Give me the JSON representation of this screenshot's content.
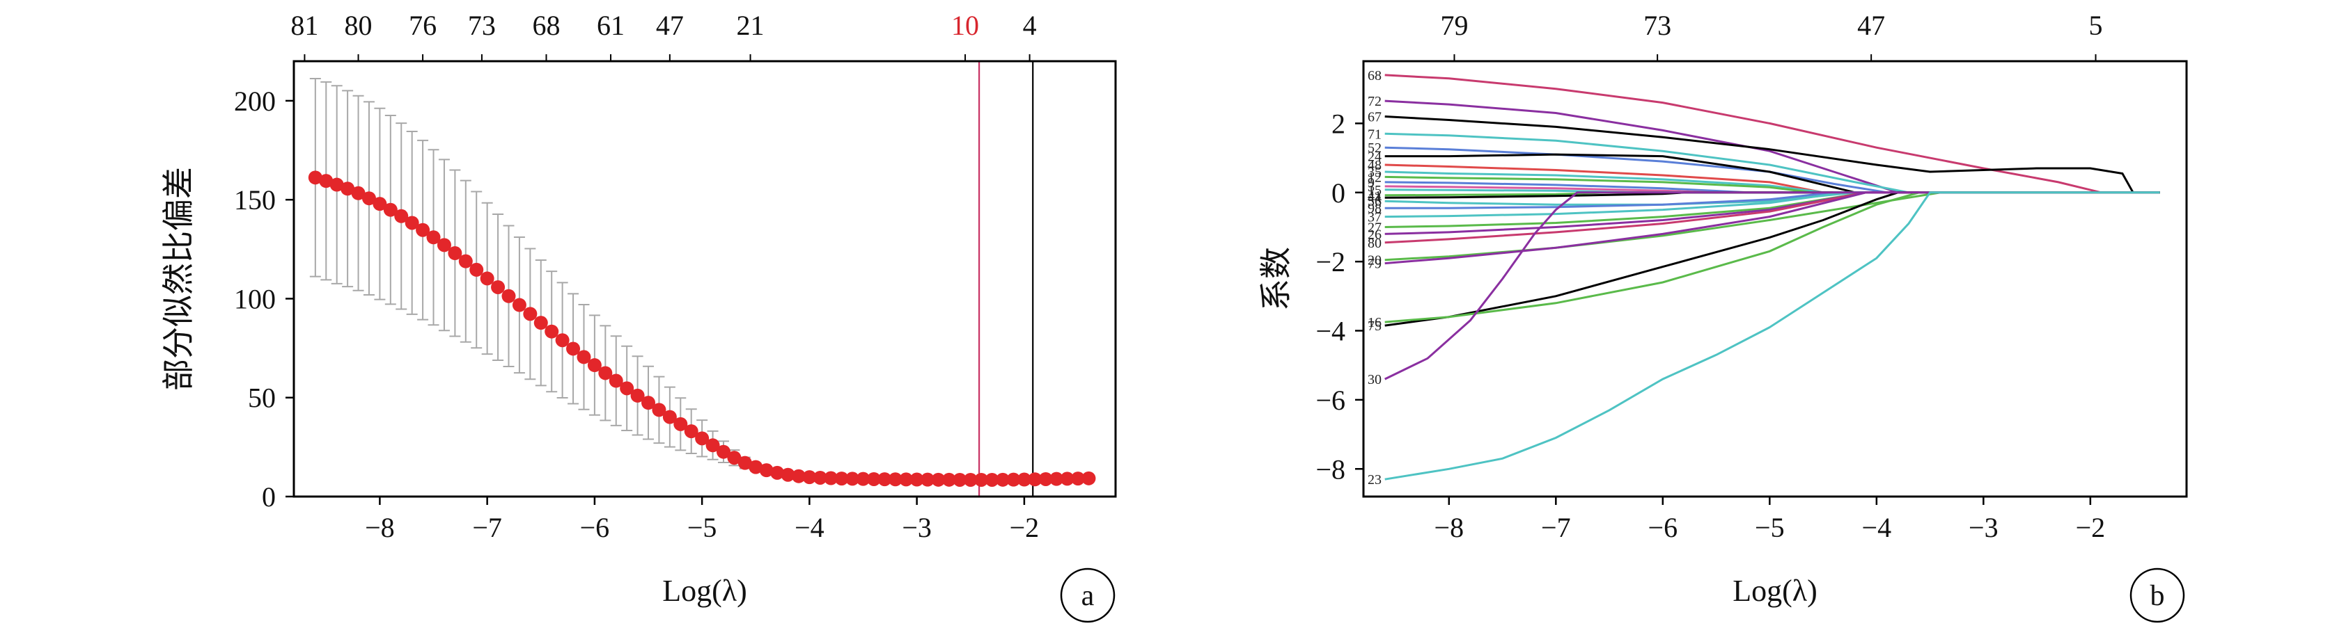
{
  "chart_data": [
    {
      "id": "a",
      "type": "scatter",
      "panel_letter": "a",
      "xlabel": "Log(λ)",
      "ylabel": "部分似然比偏差",
      "xlim": [
        -8.8,
        -1.15
      ],
      "ylim": [
        0,
        220
      ],
      "x_ticks": [
        -8,
        -7,
        -6,
        -5,
        -4,
        -3,
        -2
      ],
      "y_ticks": [
        0,
        50,
        100,
        150,
        200
      ],
      "top_ticks": [
        {
          "x": -8.7,
          "label": "81"
        },
        {
          "x": -8.2,
          "label": "80"
        },
        {
          "x": -7.6,
          "label": "76"
        },
        {
          "x": -7.05,
          "label": "73"
        },
        {
          "x": -6.45,
          "label": "68"
        },
        {
          "x": -5.85,
          "label": "61"
        },
        {
          "x": -5.3,
          "label": "47"
        },
        {
          "x": -4.55,
          "label": "21"
        },
        {
          "x": -2.55,
          "label": "10",
          "color": "#d8262e"
        },
        {
          "x": -1.95,
          "label": "4"
        }
      ],
      "vlines": [
        {
          "x": -2.42,
          "color": "#c83264"
        },
        {
          "x": -1.92,
          "color": "#000000"
        }
      ],
      "point_color": "#e3262a",
      "errorbar_color": "#a8a8a8",
      "points": {
        "x": [
          -8.6,
          -8.5,
          -8.4,
          -8.3,
          -8.2,
          -8.1,
          -8.0,
          -7.9,
          -7.8,
          -7.7,
          -7.6,
          -7.5,
          -7.4,
          -7.3,
          -7.2,
          -7.1,
          -7.0,
          -6.9,
          -6.8,
          -6.7,
          -6.6,
          -6.5,
          -6.4,
          -6.3,
          -6.2,
          -6.1,
          -6.0,
          -5.9,
          -5.8,
          -5.7,
          -5.6,
          -5.5,
          -5.4,
          -5.3,
          -5.2,
          -5.1,
          -5.0,
          -4.9,
          -4.8,
          -4.7,
          -4.6,
          -4.5,
          -4.4,
          -4.3,
          -4.2,
          -4.1,
          -4.0,
          -3.9,
          -3.8,
          -3.7,
          -3.6,
          -3.5,
          -3.4,
          -3.3,
          -3.2,
          -3.1,
          -3.0,
          -2.9,
          -2.8,
          -2.7,
          -2.6,
          -2.5,
          -2.4,
          -2.3,
          -2.2,
          -2.1,
          -2.0,
          -1.9,
          -1.8,
          -1.7,
          -1.6,
          -1.5,
          -1.4
        ],
        "y": [
          161.2,
          159.5,
          157.6,
          155.6,
          153.3,
          150.7,
          147.9,
          144.9,
          141.7,
          138.3,
          134.7,
          131.0,
          127.1,
          123.0,
          118.9,
          114.6,
          110.2,
          105.8,
          101.3,
          96.8,
          92.3,
          87.8,
          83.4,
          79.0,
          74.7,
          70.5,
          66.4,
          62.4,
          58.5,
          54.7,
          51.0,
          47.4,
          43.8,
          40.2,
          36.6,
          33.0,
          29.4,
          25.9,
          22.6,
          19.6,
          17.0,
          14.9,
          13.3,
          12.0,
          11.0,
          10.3,
          9.8,
          9.5,
          9.3,
          9.1,
          9.0,
          8.9,
          8.8,
          8.75,
          8.7,
          8.65,
          8.6,
          8.55,
          8.5,
          8.5,
          8.45,
          8.45,
          8.45,
          8.45,
          8.5,
          8.55,
          8.6,
          8.7,
          8.8,
          8.9,
          9.0,
          9.1,
          9.2
        ],
        "err_half": [
          50,
          50,
          50,
          49.5,
          49.2,
          48.8,
          48.3,
          47.7,
          47.0,
          46.2,
          45.3,
          44.3,
          43.2,
          42.0,
          40.8,
          39.5,
          38.2,
          36.9,
          35.6,
          34.3,
          33.0,
          31.7,
          30.4,
          29.1,
          27.8,
          26.5,
          25.2,
          23.9,
          22.6,
          21.3,
          19.9,
          18.4,
          16.8,
          15.1,
          13.2,
          11.2,
          9.2,
          7.2,
          5.4,
          3.9,
          2.8,
          2.0,
          1.4,
          1.0,
          0.8,
          0.6,
          0.5,
          0.4,
          0.3,
          0.3,
          0.3,
          0.3,
          0.3,
          0.3,
          0.3,
          0.3,
          0.3,
          0.3,
          0.3,
          0.3,
          0.3,
          0.3,
          0.3,
          0.3,
          0.3,
          0.3,
          0.3,
          0.3,
          0.3,
          0.3,
          0.3,
          0.3,
          0.3
        ]
      }
    },
    {
      "id": "b",
      "type": "line",
      "panel_letter": "b",
      "xlabel": "Log(λ)",
      "ylabel": "系数",
      "xlim": [
        -8.8,
        -1.1
      ],
      "ylim": [
        -8.8,
        3.8
      ],
      "x_ticks": [
        -8,
        -7,
        -6,
        -5,
        -4,
        -3,
        -2
      ],
      "y_ticks": [
        -8,
        -6,
        -4,
        -2,
        0,
        2
      ],
      "top_ticks": [
        {
          "x": -7.95,
          "label": "79"
        },
        {
          "x": -6.05,
          "label": "73"
        },
        {
          "x": -4.05,
          "label": "47"
        },
        {
          "x": -1.95,
          "label": "5"
        }
      ],
      "series": [
        {
          "label": "68",
          "color": "#c83a6e",
          "x": [
            -8.6,
            -8,
            -7,
            -6,
            -5,
            -4,
            -3,
            -2.3,
            -1.9
          ],
          "y": [
            3.4,
            3.3,
            3.0,
            2.6,
            2.0,
            1.3,
            0.7,
            0.3,
            0
          ]
        },
        {
          "label": "72",
          "color": "#8a2fa0",
          "x": [
            -8.6,
            -8,
            -7,
            -6,
            -5,
            -4.3,
            -3.8
          ],
          "y": [
            2.65,
            2.55,
            2.3,
            1.8,
            1.2,
            0.5,
            0
          ]
        },
        {
          "label": "67",
          "color": "#000000",
          "x": [
            -8.6,
            -8,
            -7,
            -6,
            -5,
            -4,
            -3.5,
            -3,
            -2.5,
            -2,
            -1.7,
            -1.6
          ],
          "y": [
            2.2,
            2.1,
            1.9,
            1.6,
            1.25,
            0.8,
            0.6,
            0.65,
            0.7,
            0.7,
            0.55,
            0
          ]
        },
        {
          "label": "71",
          "color": "#4ec3c3",
          "x": [
            -8.6,
            -8,
            -7,
            -6,
            -5,
            -4.2,
            -3.7
          ],
          "y": [
            1.7,
            1.65,
            1.5,
            1.2,
            0.8,
            0.3,
            0
          ]
        },
        {
          "label": "52",
          "color": "#5a7fd8",
          "x": [
            -8.6,
            -8,
            -7,
            -6,
            -5,
            -4.4,
            -3.9
          ],
          "y": [
            1.3,
            1.25,
            1.1,
            0.9,
            0.6,
            0.25,
            0
          ]
        },
        {
          "label": "24",
          "color": "#000000",
          "x": [
            -8.6,
            -8,
            -7,
            -6,
            -5,
            -4.2
          ],
          "y": [
            1.05,
            1.05,
            1.1,
            1.05,
            0.6,
            0
          ]
        },
        {
          "label": "48",
          "color": "#e04a4a",
          "x": [
            -8.6,
            -8,
            -7,
            -6,
            -5,
            -4.5
          ],
          "y": [
            0.8,
            0.75,
            0.65,
            0.5,
            0.3,
            0
          ]
        },
        {
          "label": "35",
          "color": "#4ec3c3",
          "x": [
            -8.6,
            -8,
            -7,
            -6,
            -5,
            -4.5
          ],
          "y": [
            0.6,
            0.55,
            0.5,
            0.38,
            0.2,
            0
          ]
        },
        {
          "label": "12",
          "color": "#5aba4a",
          "x": [
            -8.6,
            -8,
            -7,
            -6,
            -5,
            -4.6
          ],
          "y": [
            0.45,
            0.42,
            0.38,
            0.3,
            0.15,
            0
          ]
        },
        {
          "label": "9",
          "color": "#5a7fd8",
          "x": [
            -8.6,
            -8,
            -7,
            -6,
            -5.2
          ],
          "y": [
            0.3,
            0.28,
            0.22,
            0.12,
            0
          ]
        },
        {
          "label": "3",
          "color": "#d85aa0",
          "x": [
            -8.6,
            -8,
            -7,
            -6,
            -5.5
          ],
          "y": [
            0.18,
            0.16,
            0.12,
            0.05,
            0
          ]
        },
        {
          "label": "15",
          "color": "#4ec3c3",
          "x": [
            -8.6,
            -8,
            -7,
            -6.2
          ],
          "y": [
            0.08,
            0.07,
            0.05,
            0
          ]
        },
        {
          "label": "41",
          "color": "#5aba4a",
          "x": [
            -8.6,
            -8,
            -7,
            -6.5
          ],
          "y": [
            -0.08,
            -0.07,
            -0.05,
            0
          ]
        },
        {
          "label": "44",
          "color": "#000000",
          "x": [
            -8.6,
            -8,
            -7,
            -6,
            -5.8
          ],
          "y": [
            -0.15,
            -0.14,
            -0.1,
            -0.04,
            0
          ]
        },
        {
          "label": "56",
          "color": "#4ec3c3",
          "x": [
            -8.6,
            -8,
            -7,
            -6,
            -5,
            -4.2
          ],
          "y": [
            -0.25,
            -0.3,
            -0.35,
            -0.35,
            -0.25,
            0
          ]
        },
        {
          "label": "98",
          "color": "#5a7fd8",
          "x": [
            -8.6,
            -8,
            -7,
            -6,
            -5,
            -4.4
          ],
          "y": [
            -0.45,
            -0.45,
            -0.42,
            -0.35,
            -0.2,
            0
          ]
        },
        {
          "label": "37",
          "color": "#4ec3c3",
          "x": [
            -8.6,
            -8,
            -7,
            -6,
            -5,
            -4.3
          ],
          "y": [
            -0.7,
            -0.68,
            -0.62,
            -0.5,
            -0.3,
            0
          ]
        },
        {
          "label": "27",
          "color": "#5aba4a",
          "x": [
            -8.6,
            -8,
            -7,
            -6,
            -5,
            -4.1
          ],
          "y": [
            -1.0,
            -0.97,
            -0.88,
            -0.7,
            -0.45,
            0
          ]
        },
        {
          "label": "26",
          "color": "#8a2fa0",
          "x": [
            -8.6,
            -8,
            -7,
            -6,
            -5,
            -4.1
          ],
          "y": [
            -1.2,
            -1.15,
            -1.0,
            -0.8,
            -0.5,
            0
          ]
        },
        {
          "label": "80",
          "color": "#c83a6e",
          "x": [
            -8.6,
            -8,
            -7,
            -6,
            -5,
            -4.1
          ],
          "y": [
            -1.45,
            -1.35,
            -1.15,
            -0.9,
            -0.55,
            0
          ]
        },
        {
          "label": "20",
          "color": "#5aba4a",
          "x": [
            -8.6,
            -8,
            -7,
            -6,
            -5,
            -4,
            -3.4
          ],
          "y": [
            -1.95,
            -1.85,
            -1.6,
            -1.25,
            -0.8,
            -0.3,
            0
          ]
        },
        {
          "label": "79",
          "color": "#8a2fa0",
          "x": [
            -8.6,
            -8,
            -7,
            -6,
            -5,
            -4.1
          ],
          "y": [
            -2.05,
            -1.9,
            -1.6,
            -1.2,
            -0.7,
            0
          ]
        },
        {
          "label": "75",
          "color": "#000000",
          "x": [
            -8.6,
            -8,
            -7,
            -6,
            -5,
            -4.5,
            -4,
            -3.8
          ],
          "y": [
            -3.85,
            -3.6,
            -3.0,
            -2.15,
            -1.3,
            -0.8,
            -0.2,
            0
          ]
        },
        {
          "label": "16",
          "color": "#5aba4a",
          "x": [
            -8.6,
            -8,
            -7,
            -6,
            -5,
            -4.5,
            -4,
            -3.6
          ],
          "y": [
            -3.75,
            -3.6,
            -3.2,
            -2.6,
            -1.7,
            -1.0,
            -0.35,
            0
          ]
        },
        {
          "label": "30",
          "color": "#8a2fa0",
          "x": [
            -8.6,
            -8.2,
            -7.8,
            -7.5,
            -7.2,
            -7.0,
            -6.8
          ],
          "y": [
            -5.4,
            -4.8,
            -3.7,
            -2.5,
            -1.2,
            -0.5,
            0
          ]
        },
        {
          "label": "23",
          "color": "#4ec3c3",
          "x": [
            -8.6,
            -8,
            -7.5,
            -7,
            -6.5,
            -6,
            -5.5,
            -5,
            -4.5,
            -4,
            -3.7,
            -3.5
          ],
          "y": [
            -8.3,
            -8.0,
            -7.7,
            -7.1,
            -6.3,
            -5.4,
            -4.7,
            -3.9,
            -2.9,
            -1.9,
            -0.9,
            0
          ]
        }
      ]
    }
  ]
}
